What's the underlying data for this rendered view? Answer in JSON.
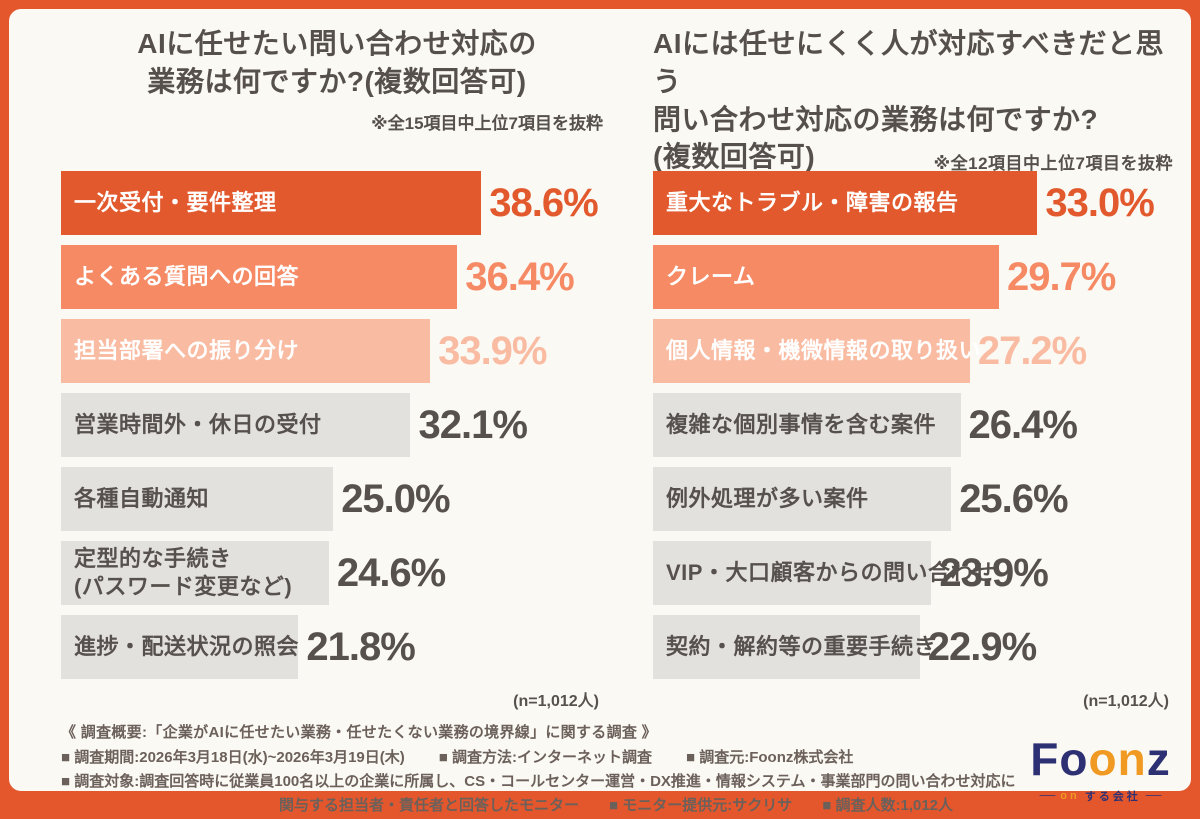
{
  "frame": {
    "border_color": "#E4572D",
    "panel_background": "#FBF9F4"
  },
  "charts": [
    {
      "title_lines": [
        "AIに任せたい問い合わせ対応の",
        "業務は何ですか?(複数回答可)"
      ],
      "note": "※全15項目中上位7項目を抜粋",
      "n_label": "(n=1,012人)",
      "xmax": 50.7,
      "bars": [
        {
          "label": "一次受付・要件整理",
          "value": 38.6,
          "display": "38.6%",
          "bar_color": "#E2592D",
          "pct_color": "#E2592D",
          "label_color": "#FFFFFF"
        },
        {
          "label": "よくある質問への回答",
          "value": 36.4,
          "display": "36.4%",
          "bar_color": "#F58A64",
          "pct_color": "#F58A64",
          "label_color": "#FFFFFF"
        },
        {
          "label": "担当部署への振り分け",
          "value": 33.9,
          "display": "33.9%",
          "bar_color": "#F9BCA2",
          "pct_color": "#F9BCA2",
          "label_color": "#FFFFFF"
        },
        {
          "label": "営業時間外・休日の受付",
          "value": 32.1,
          "display": "32.1%",
          "bar_color": "#E3E1DE",
          "pct_color": "#57514E",
          "label_color": "#57514E"
        },
        {
          "label": "各種自動通知",
          "value": 25.0,
          "display": "25.0%",
          "bar_color": "#E3E1DE",
          "pct_color": "#57514E",
          "label_color": "#57514E"
        },
        {
          "label": "定型的な手続き\n(パスワード変更など)",
          "value": 24.6,
          "display": "24.6%",
          "bar_color": "#E3E1DE",
          "pct_color": "#57514E",
          "label_color": "#57514E"
        },
        {
          "label": "進捗・配送状況の照会",
          "value": 21.8,
          "display": "21.8%",
          "bar_color": "#E3E1DE",
          "pct_color": "#57514E",
          "label_color": "#57514E"
        }
      ]
    },
    {
      "title_lines": [
        "AIには任せにくく人が対応すべきだと思う",
        "問い合わせ対応の業務は何ですか?",
        "(複数回答可)"
      ],
      "note": "※全12項目中上位7項目を抜粋",
      "n_label": "(n=1,012人)",
      "xmax": 45.5,
      "bars": [
        {
          "label": "重大なトラブル・障害の報告",
          "value": 33.0,
          "display": "33.0%",
          "bar_color": "#E2592D",
          "pct_color": "#E2592D",
          "label_color": "#FFFFFF"
        },
        {
          "label": "クレーム",
          "value": 29.7,
          "display": "29.7%",
          "bar_color": "#F58A64",
          "pct_color": "#F58A64",
          "label_color": "#FFFFFF"
        },
        {
          "label": "個人情報・機微情報の取り扱い",
          "value": 27.2,
          "display": "27.2%",
          "bar_color": "#F9BCA2",
          "pct_color": "#F9BCA2",
          "label_color": "#FFFFFF"
        },
        {
          "label": "複雑な個別事情を含む案件",
          "value": 26.4,
          "display": "26.4%",
          "bar_color": "#E3E1DE",
          "pct_color": "#57514E",
          "label_color": "#57514E"
        },
        {
          "label": "例外処理が多い案件",
          "value": 25.6,
          "display": "25.6%",
          "bar_color": "#E3E1DE",
          "pct_color": "#57514E",
          "label_color": "#57514E"
        },
        {
          "label": "VIP・大口顧客からの問い合わせ",
          "value": 23.9,
          "display": "23.9%",
          "bar_color": "#E3E1DE",
          "pct_color": "#57514E",
          "label_color": "#57514E"
        },
        {
          "label": "契約・解約等の重要手続き",
          "value": 22.9,
          "display": "22.9%",
          "bar_color": "#E3E1DE",
          "pct_color": "#57514E",
          "label_color": "#57514E"
        }
      ]
    }
  ],
  "footer": {
    "heading": "《 調査概要:「企業がAIに任せたい業務・任せたくない業務の境界線」に関する調査 》",
    "line2_items": [
      "■ 調査期間:2026年3月18日(水)~2026年3月19日(木)",
      "■ 調査方法:インターネット調査",
      "■ 調査元:Foonz株式会社"
    ],
    "line3": "■ 調査対象:調査回答時に従業員100名以上の企業に所属し、CS・コールセンター運営・DX推進・情報システム・事業部門の問い合わせ対応に",
    "line4_items": [
      "関与する担当者・責任者と回答したモニター",
      "■ モニター提供元:サクリサ",
      "■ 調査人数:1,012人"
    ]
  },
  "logo": {
    "letters": [
      {
        "ch": "F",
        "color": "#2D3174"
      },
      {
        "ch": "o",
        "color": "#2D3174"
      },
      {
        "ch": "o",
        "color": "#F09A23"
      },
      {
        "ch": "n",
        "color": "#F09A23"
      },
      {
        "ch": "z",
        "color": "#2D3174"
      }
    ],
    "tagline_dash_left": "──",
    "tagline_on": "on",
    "tagline_rest": "する会社",
    "tagline_dash_right": "──"
  },
  "chart_data": [
    {
      "type": "bar",
      "orientation": "horizontal",
      "title": "AIに任せたい問い合わせ対応の業務は何ですか?(複数回答可)",
      "note": "※全15項目中上位7項目を抜粋",
      "categories": [
        "一次受付・要件整理",
        "よくある質問への回答",
        "担当部署への振り分け",
        "営業時間外・休日の受付",
        "各種自動通知",
        "定型的な手続き(パスワード変更など)",
        "進捗・配送状況の照会"
      ],
      "values": [
        38.6,
        36.4,
        33.9,
        32.1,
        25.0,
        24.6,
        21.8
      ],
      "unit": "%",
      "n": "n=1,012人",
      "xlim": [
        0,
        50.7
      ],
      "grid": false,
      "legend": false,
      "bar_colors": [
        "#E2592D",
        "#F58A64",
        "#F9BCA2",
        "#E3E1DE",
        "#E3E1DE",
        "#E3E1DE",
        "#E3E1DE"
      ]
    },
    {
      "type": "bar",
      "orientation": "horizontal",
      "title": "AIには任せにくく人が対応すべきだと思う問い合わせ対応の業務は何ですか?(複数回答可)",
      "note": "※全12項目中上位7項目を抜粋",
      "categories": [
        "重大なトラブル・障害の報告",
        "クレーム",
        "個人情報・機微情報の取り扱い",
        "複雑な個別事情を含む案件",
        "例外処理が多い案件",
        "VIP・大口顧客からの問い合わせ",
        "契約・解約等の重要手続き"
      ],
      "values": [
        33.0,
        29.7,
        27.2,
        26.4,
        25.6,
        23.9,
        22.9
      ],
      "unit": "%",
      "n": "n=1,012人",
      "xlim": [
        0,
        45.5
      ],
      "grid": false,
      "legend": false,
      "bar_colors": [
        "#E2592D",
        "#F58A64",
        "#F9BCA2",
        "#E3E1DE",
        "#E3E1DE",
        "#E3E1DE",
        "#E3E1DE"
      ]
    }
  ]
}
